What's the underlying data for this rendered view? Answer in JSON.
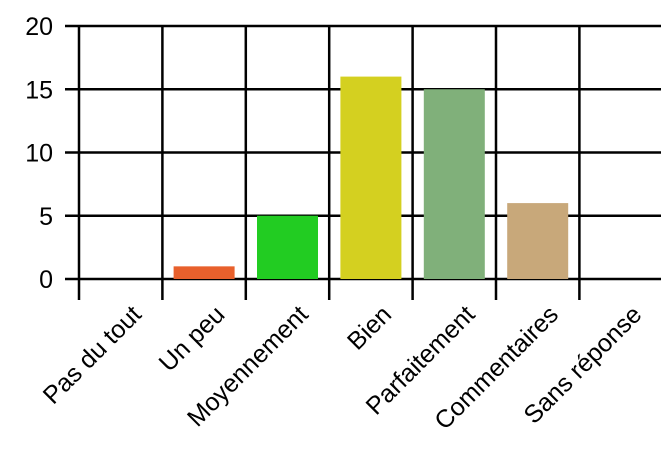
{
  "chart_data": {
    "type": "bar",
    "categories": [
      "Pas du tout",
      "Un peu",
      "Moyennement",
      "Bien",
      "Parfaitement",
      "Commentaires",
      "Sans réponse"
    ],
    "values": [
      0,
      1,
      5,
      16,
      15,
      6,
      0
    ],
    "colors": [
      "#cccccc",
      "#e8602c",
      "#22cc22",
      "#d4d020",
      "#80b07a",
      "#c8a87a",
      "#cccccc"
    ],
    "ylim": [
      0,
      20
    ],
    "yticks": [
      0,
      5,
      10,
      15,
      20
    ],
    "grid": true
  }
}
